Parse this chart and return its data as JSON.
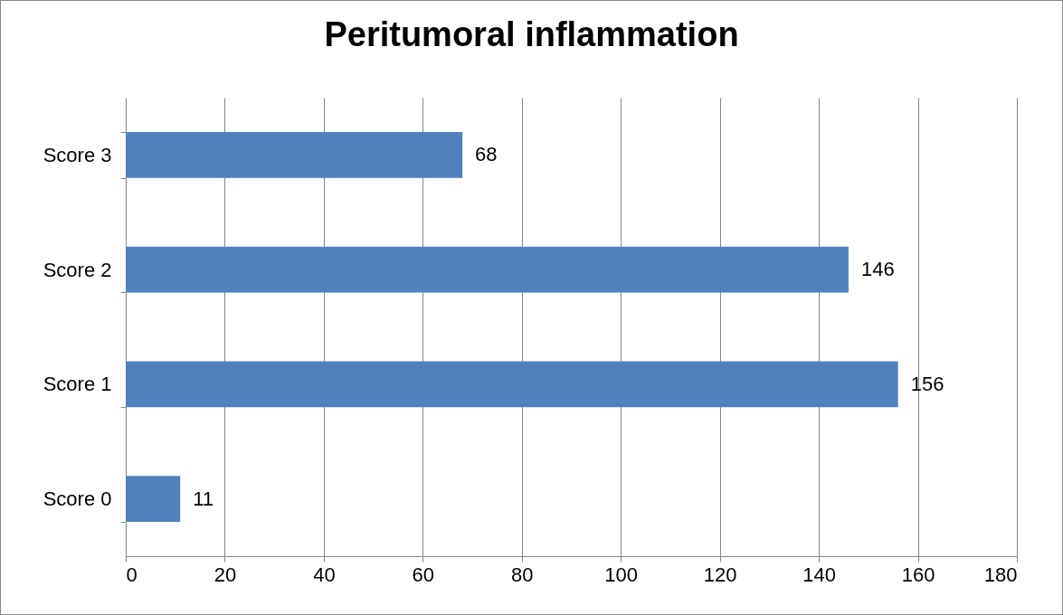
{
  "chart_data": {
    "type": "bar",
    "orientation": "horizontal",
    "title": "Peritumoral inflammation",
    "categories": [
      "Score 3",
      "Score 2",
      "Score 1",
      "Score 0"
    ],
    "values": [
      68,
      146,
      156,
      11
    ],
    "color": "#4f81bd",
    "xlim": [
      0,
      180
    ],
    "xticks": [
      0,
      20,
      40,
      60,
      80,
      100,
      120,
      140,
      160,
      180
    ],
    "grid": "x",
    "data_labels": true
  }
}
